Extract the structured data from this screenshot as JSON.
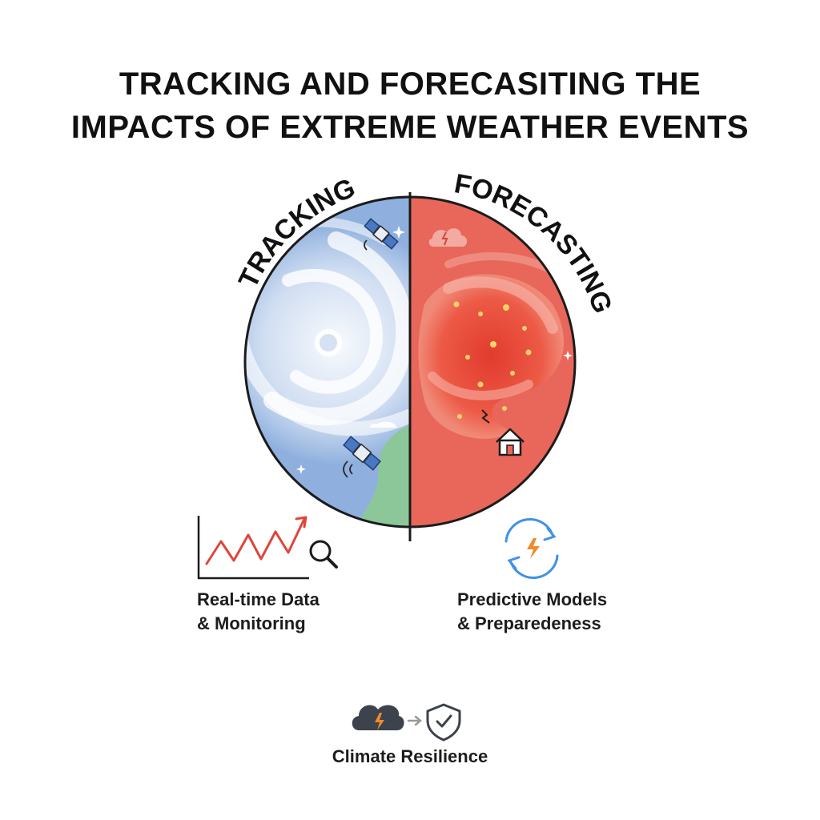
{
  "title": {
    "line1": "TRACKING AND FORECASITING THE",
    "line2": "IMPACTS OF EXTREME WEATHER EVENTS"
  },
  "globe": {
    "left_label": "TRACKING",
    "right_label": "FORECASTING",
    "left_color": "#8fb0de",
    "right_color": "#e8675a",
    "land_color": "#8cc79a"
  },
  "left_panel": {
    "icons": [
      "line-chart-icon",
      "magnifier-icon",
      "satellite-icon"
    ],
    "caption_line1": "Real-time Data",
    "caption_line2": "& Monitoring"
  },
  "right_panel": {
    "icons": [
      "refresh-cycle-icon",
      "lightning-icon",
      "house-icon",
      "storm-cloud-icon"
    ],
    "caption_line1": "Predictive Models",
    "caption_line2": "& Preparedeness"
  },
  "footer": {
    "icons": [
      "storm-cloud-icon",
      "arrow-right-icon",
      "shield-check-icon"
    ],
    "caption": "Climate Resilience"
  }
}
